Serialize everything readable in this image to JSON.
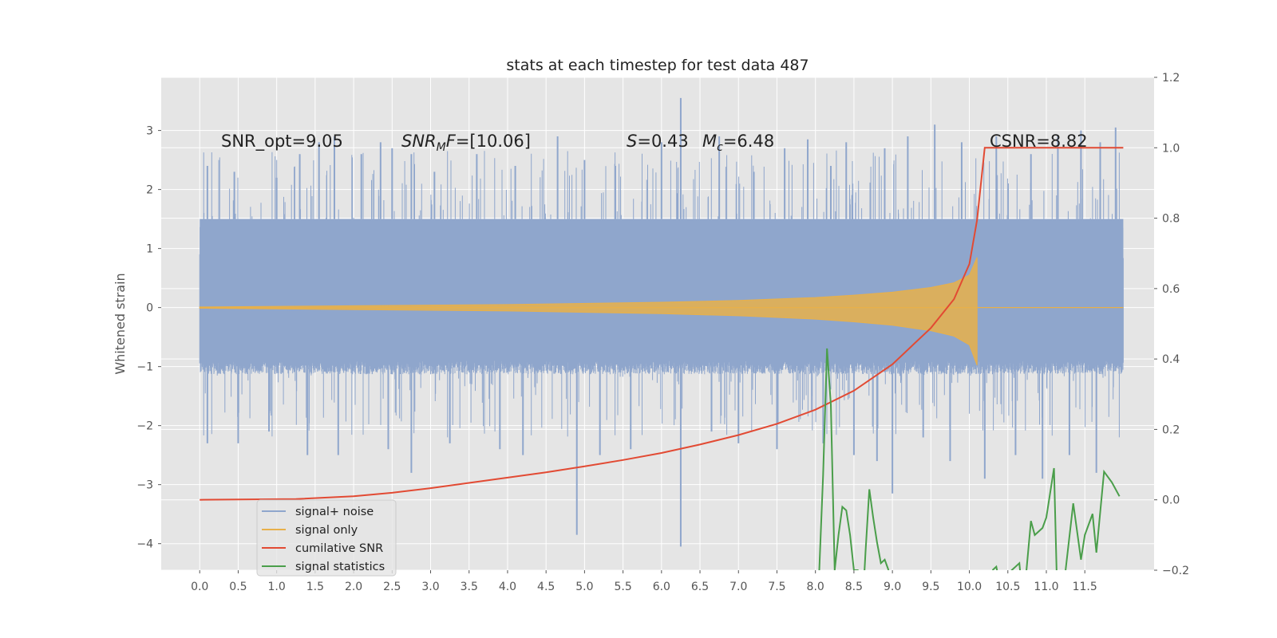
{
  "chart_data": {
    "type": "line",
    "title": "stats at each timestep for test data 487",
    "ylabel": "Whitened strain",
    "xlabel": "",
    "xlim": [
      -0.5,
      12.4
    ],
    "ylim": [
      -4.45,
      3.9
    ],
    "y2lim": [
      -0.2,
      1.2
    ],
    "x_ticks": [
      "0.0",
      "0.5",
      "1.0",
      "1.5",
      "2.0",
      "2.5",
      "3.0",
      "3.5",
      "4.0",
      "4.5",
      "5.0",
      "5.5",
      "6.0",
      "6.5",
      "7.0",
      "7.5",
      "8.0",
      "8.5",
      "9.0",
      "9.5",
      "10.0",
      "10.5",
      "11.0",
      "11.5"
    ],
    "y_ticks": [
      "3",
      "2",
      "1",
      "0",
      "−1",
      "−2",
      "−3",
      "−4"
    ],
    "y2_ticks": [
      "1.2",
      "1.0",
      "0.8",
      "0.6",
      "0.4",
      "0.2",
      "0.0",
      "−0.2"
    ],
    "grid": true,
    "legend_position": "lower-left",
    "annotations": {
      "snr_opt": "SNR_opt=9.05",
      "snr_mf_name": "SNR",
      "snr_mf_sub": "M",
      "snr_mf_f": "F",
      "snr_mf_value": "=[10.06]",
      "s_name": "S",
      "s_value": "=0.43",
      "mc_name": "M",
      "mc_sub": "c",
      "mc_value": "=6.48",
      "csnr": "CSNR=8.82"
    },
    "series": [
      {
        "name": "signal+ noise",
        "color": "#8fa6cc",
        "axis": "left",
        "x_range": [
          0.0,
          12.0
        ],
        "envelope_upper": 1.5,
        "envelope_lower": -0.9,
        "peaks_upper": [
          [
            0.1,
            2.4
          ],
          [
            0.45,
            2.3
          ],
          [
            1.0,
            2.2
          ],
          [
            1.3,
            2.6
          ],
          [
            1.55,
            2.8
          ],
          [
            1.75,
            2.9
          ],
          [
            2.1,
            2.6
          ],
          [
            2.35,
            2.8
          ],
          [
            2.5,
            2.7
          ],
          [
            2.75,
            2.6
          ],
          [
            3.05,
            2.3
          ],
          [
            3.6,
            2.6
          ],
          [
            4.1,
            2.4
          ],
          [
            4.65,
            2.9
          ],
          [
            5.0,
            2.5
          ],
          [
            5.4,
            2.4
          ],
          [
            6.0,
            2.8
          ],
          [
            6.25,
            3.55
          ],
          [
            6.75,
            2.9
          ],
          [
            7.2,
            2.3
          ],
          [
            7.6,
            2.7
          ],
          [
            7.9,
            2.85
          ],
          [
            8.2,
            2.4
          ],
          [
            8.4,
            2.8
          ],
          [
            8.9,
            2.7
          ],
          [
            9.2,
            2.9
          ],
          [
            9.55,
            3.1
          ],
          [
            9.9,
            2.8
          ],
          [
            10.35,
            2.9
          ],
          [
            10.8,
            2.6
          ],
          [
            11.15,
            2.9
          ],
          [
            11.45,
            3.0
          ],
          [
            11.7,
            2.8
          ],
          [
            11.9,
            3.05
          ]
        ],
        "peaks_lower": [
          [
            0.1,
            -2.3
          ],
          [
            0.5,
            -2.3
          ],
          [
            0.9,
            -2.1
          ],
          [
            1.4,
            -2.5
          ],
          [
            1.8,
            -2.5
          ],
          [
            2.45,
            -2.4
          ],
          [
            2.75,
            -2.8
          ],
          [
            3.25,
            -2.3
          ],
          [
            3.9,
            -2.4
          ],
          [
            4.2,
            -2.5
          ],
          [
            4.9,
            -3.85
          ],
          [
            5.2,
            -2.5
          ],
          [
            5.6,
            -2.4
          ],
          [
            6.25,
            -4.05
          ],
          [
            6.65,
            -2.1
          ],
          [
            7.0,
            -2.3
          ],
          [
            7.5,
            -2.4
          ],
          [
            8.1,
            -2.3
          ],
          [
            8.5,
            -2.5
          ],
          [
            8.8,
            -2.6
          ],
          [
            9.0,
            -3.15
          ],
          [
            9.4,
            -2.2
          ],
          [
            9.75,
            -2.6
          ],
          [
            10.2,
            -2.9
          ],
          [
            10.6,
            -2.5
          ],
          [
            10.95,
            -2.9
          ],
          [
            11.3,
            -2.5
          ],
          [
            11.65,
            -2.8
          ]
        ]
      },
      {
        "name": "signal only",
        "color": "#e8b04a",
        "axis": "left",
        "x_range": [
          0.0,
          12.0
        ],
        "chirp_end": 10.1,
        "amplitude_points": [
          [
            0.0,
            0.01
          ],
          [
            2.0,
            0.03
          ],
          [
            4.0,
            0.05
          ],
          [
            6.0,
            0.09
          ],
          [
            7.0,
            0.12
          ],
          [
            8.0,
            0.17
          ],
          [
            8.5,
            0.21
          ],
          [
            9.0,
            0.26
          ],
          [
            9.5,
            0.34
          ],
          [
            9.8,
            0.42
          ],
          [
            10.0,
            0.55
          ],
          [
            10.1,
            0.85
          ]
        ]
      },
      {
        "name": "cumilative SNR",
        "color": "#e24a33",
        "axis": "right",
        "x": [
          0.0,
          1.25,
          2.0,
          2.5,
          3.0,
          3.5,
          4.0,
          4.5,
          5.0,
          5.5,
          6.0,
          6.5,
          7.0,
          7.5,
          8.0,
          8.5,
          9.0,
          9.5,
          9.8,
          10.0,
          10.1,
          10.2,
          12.0
        ],
        "y": [
          0.0,
          0.002,
          0.01,
          0.02,
          0.033,
          0.048,
          0.063,
          0.078,
          0.095,
          0.113,
          0.133,
          0.157,
          0.184,
          0.216,
          0.256,
          0.31,
          0.385,
          0.488,
          0.57,
          0.67,
          0.795,
          1.0,
          1.0
        ]
      },
      {
        "name": "signal statistics",
        "color": "#4a9e4a",
        "axis": "right",
        "segments": [
          {
            "x": [
              8.05,
              8.1,
              8.15,
              8.2,
              8.25,
              8.3,
              8.35,
              8.4,
              8.45,
              8.5,
              8.55,
              8.6,
              8.65,
              8.7,
              8.75,
              8.8,
              8.85,
              8.9,
              8.95
            ],
            "y": [
              -0.2,
              0.07,
              0.43,
              0.27,
              -0.2,
              -0.1,
              -0.02,
              -0.03,
              -0.1,
              -0.2,
              -0.2,
              -0.35,
              -0.15,
              0.03,
              -0.05,
              -0.12,
              -0.18,
              -0.17,
              -0.2
            ]
          },
          {
            "x": [
              10.3,
              10.35,
              10.5,
              10.55,
              10.65,
              10.7,
              10.8,
              10.85,
              10.95,
              11.0,
              11.1,
              11.15,
              11.25,
              11.35,
              11.45,
              11.5,
              11.6,
              11.65,
              11.75,
              11.85,
              11.95
            ],
            "y": [
              -0.2,
              -0.19,
              -0.35,
              -0.2,
              -0.18,
              -0.3,
              -0.06,
              -0.1,
              -0.08,
              -0.05,
              0.09,
              -0.35,
              -0.2,
              -0.01,
              -0.17,
              -0.1,
              -0.04,
              -0.15,
              0.08,
              0.05,
              0.01
            ]
          }
        ]
      }
    ]
  },
  "style": {
    "panel_bg": "#e5e5e5",
    "grid_color": "#ffffff",
    "legend_bg": "#e5e5e5",
    "legend_border": "#cccccc"
  }
}
